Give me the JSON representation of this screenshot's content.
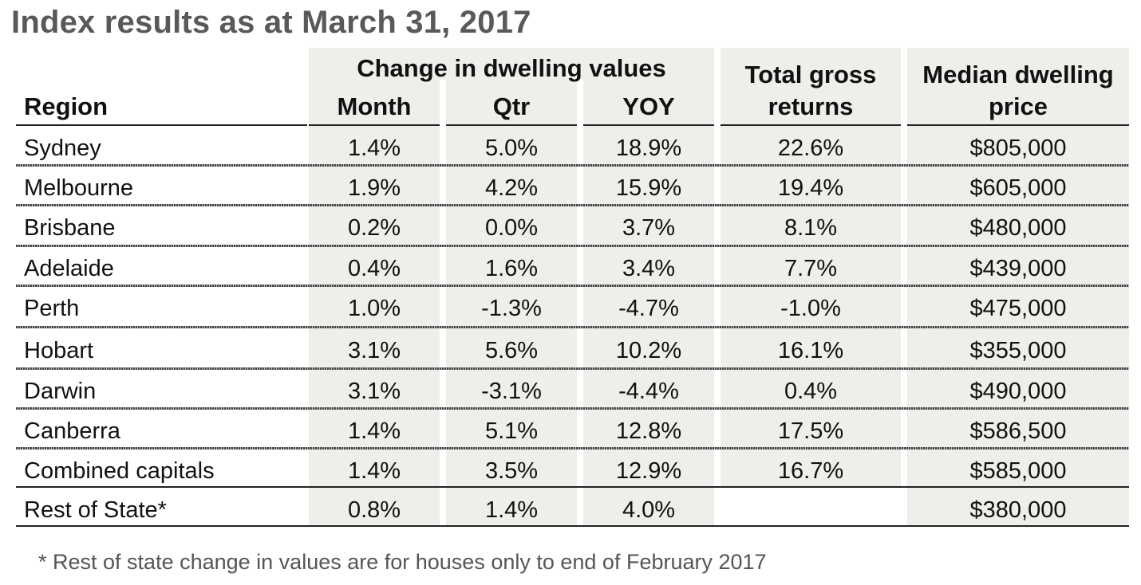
{
  "title": "Index results as at March 31, 2017",
  "headers": {
    "region": "Region",
    "group": "Change in dwelling values",
    "month": "Month",
    "qtr": "Qtr",
    "yoy": "YOY",
    "total_line1": "Total gross",
    "total_line2": "returns",
    "median_line1": "Median dwelling",
    "median_line2": "price"
  },
  "rows": [
    {
      "region": "Sydney",
      "month": "1.4%",
      "qtr": "5.0%",
      "yoy": "18.9%",
      "total": "22.6%",
      "median": "$805,000"
    },
    {
      "region": "Melbourne",
      "month": "1.9%",
      "qtr": "4.2%",
      "yoy": "15.9%",
      "total": "19.4%",
      "median": "$605,000"
    },
    {
      "region": "Brisbane",
      "month": "0.2%",
      "qtr": "0.0%",
      "yoy": "3.7%",
      "total": "8.1%",
      "median": "$480,000"
    },
    {
      "region": "Adelaide",
      "month": "0.4%",
      "qtr": "1.6%",
      "yoy": "3.4%",
      "total": "7.7%",
      "median": "$439,000"
    },
    {
      "region": "Perth",
      "month": "1.0%",
      "qtr": "-1.3%",
      "yoy": "-4.7%",
      "total": "-1.0%",
      "median": "$475,000"
    },
    {
      "region": "Hobart",
      "month": "3.1%",
      "qtr": "5.6%",
      "yoy": "10.2%",
      "total": "16.1%",
      "median": "$355,000"
    },
    {
      "region": "Darwin",
      "month": "3.1%",
      "qtr": "-3.1%",
      "yoy": "-4.4%",
      "total": "0.4%",
      "median": "$490,000"
    },
    {
      "region": "Canberra",
      "month": "1.4%",
      "qtr": "5.1%",
      "yoy": "12.8%",
      "total": "17.5%",
      "median": "$586,500"
    },
    {
      "region": "Combined capitals",
      "month": "1.4%",
      "qtr": "3.5%",
      "yoy": "12.9%",
      "total": "16.7%",
      "median": "$585,000"
    },
    {
      "region": "Rest of State*",
      "month": "0.8%",
      "qtr": "1.4%",
      "yoy": "4.0%",
      "total": "",
      "median": "$380,000"
    }
  ],
  "footnote": "* Rest of state change in values are for houses only to end of February 2017"
}
